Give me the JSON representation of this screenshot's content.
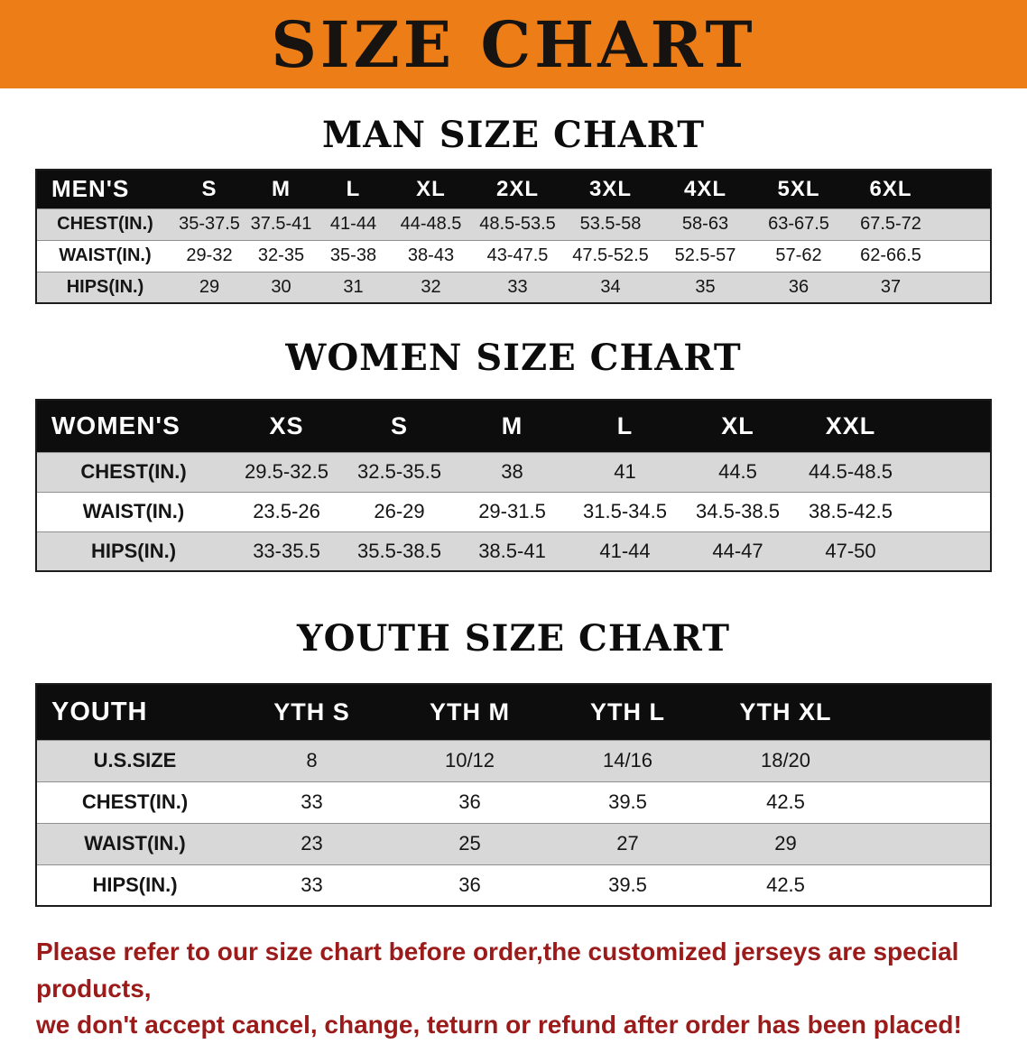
{
  "banner": {
    "title": "SIZE CHART",
    "bg_color": "#ED7D17",
    "text_color": "#161310"
  },
  "sections": [
    {
      "heading": "MAN SIZE CHART",
      "table": {
        "header": [
          "MEN'S",
          "S",
          "M",
          "L",
          "XL",
          "2XL",
          "3XL",
          "4XL",
          "5XL",
          "6XL"
        ],
        "rows": [
          [
            "CHEST(IN.)",
            "35-37.5",
            "37.5-41",
            "41-44",
            "44-48.5",
            "48.5-53.5",
            "53.5-58",
            "58-63",
            "63-67.5",
            "67.5-72"
          ],
          [
            "WAIST(IN.)",
            "29-32",
            "32-35",
            "35-38",
            "38-43",
            "43-47.5",
            "47.5-52.5",
            "52.5-57",
            "57-62",
            "62-66.5"
          ],
          [
            "HIPS(IN.)",
            "29",
            "30",
            "31",
            "32",
            "33",
            "34",
            "35",
            "36",
            "37"
          ]
        ]
      }
    },
    {
      "heading": "WOMEN SIZE CHART",
      "table": {
        "header": [
          "WOMEN'S",
          "XS",
          "S",
          "M",
          "L",
          "XL",
          "XXL"
        ],
        "rows": [
          [
            "CHEST(IN.)",
            "29.5-32.5",
            "32.5-35.5",
            "38",
            "41",
            "44.5",
            "44.5-48.5"
          ],
          [
            "WAIST(IN.)",
            "23.5-26",
            "26-29",
            "29-31.5",
            "31.5-34.5",
            "34.5-38.5",
            "38.5-42.5"
          ],
          [
            "HIPS(IN.)",
            "33-35.5",
            "35.5-38.5",
            "38.5-41",
            "41-44",
            "44-47",
            "47-50"
          ]
        ]
      }
    },
    {
      "heading": "YOUTH SIZE CHART",
      "table": {
        "header": [
          "YOUTH",
          "YTH S",
          "YTH M",
          "YTH L",
          "YTH XL"
        ],
        "rows": [
          [
            "U.S.SIZE",
            "8",
            "10/12",
            "14/16",
            "18/20"
          ],
          [
            "CHEST(IN.)",
            "33",
            "36",
            "39.5",
            "42.5"
          ],
          [
            "WAIST(IN.)",
            "23",
            "25",
            "27",
            "29"
          ],
          [
            "HIPS(IN.)",
            "33",
            "36",
            "39.5",
            "42.5"
          ]
        ]
      }
    }
  ],
  "footer": {
    "color": "#9B1B1B",
    "lines": [
      "Please refer to our size chart before order,the customized jerseys are special products,",
      "we don't accept cancel, change, teturn or refund after order has been placed!"
    ]
  },
  "table_colors": {
    "header_bg": "#0D0D0D",
    "header_text": "#FFFFFF",
    "row_odd": "#D8D8D8",
    "row_even": "#FFFFFF"
  }
}
